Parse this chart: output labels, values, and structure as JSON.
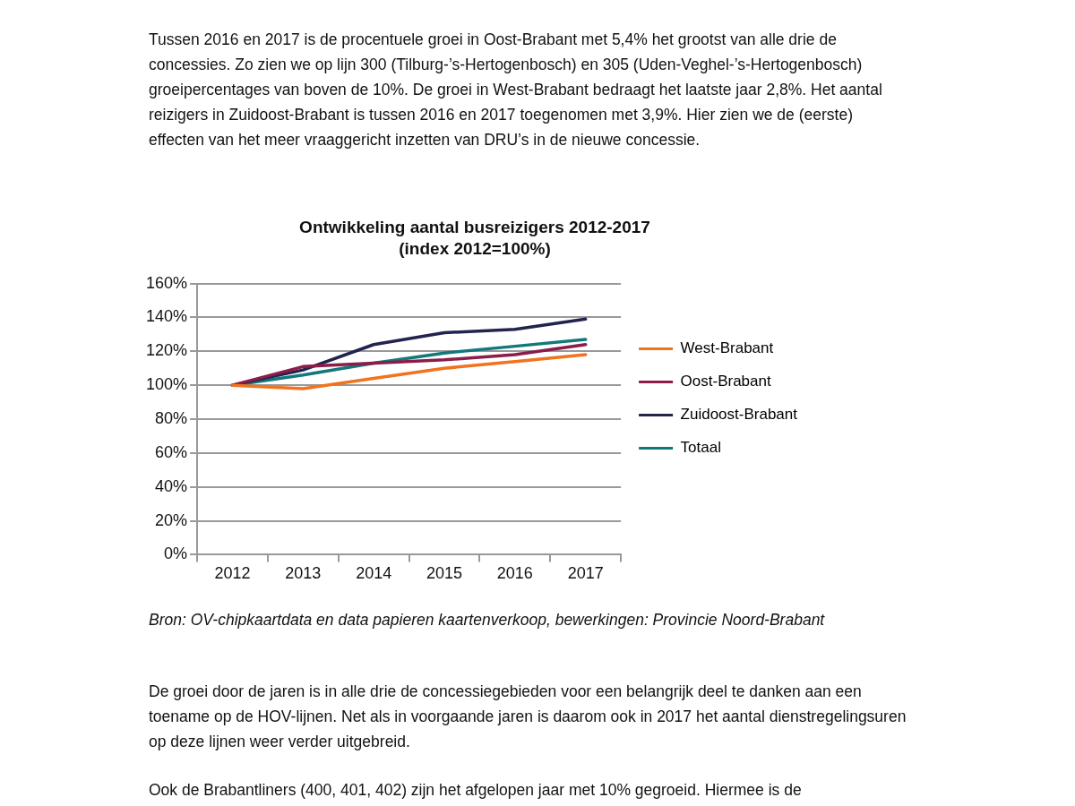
{
  "chart_data": {
    "type": "line",
    "title": "Ontwikkeling aantal busreizigers 2012-2017",
    "subtitle": "(index 2012=100%)",
    "categories": [
      "2012",
      "2013",
      "2014",
      "2015",
      "2016",
      "2017"
    ],
    "series": [
      {
        "name": "West-Brabant",
        "color": "#f0731e",
        "values": [
          100,
          98,
          104,
          110,
          114,
          118
        ]
      },
      {
        "name": "Oost-Brabant",
        "color": "#8c1c48",
        "values": [
          100,
          111,
          113,
          115,
          118,
          124
        ]
      },
      {
        "name": "Zuidoost-Brabant",
        "color": "#232350",
        "values": [
          100,
          109,
          124,
          131,
          133,
          139
        ]
      },
      {
        "name": "Totaal",
        "color": "#13787a",
        "values": [
          100,
          106,
          113,
          119,
          123,
          127
        ]
      }
    ],
    "ylim": [
      0,
      160
    ],
    "yticks": [
      {
        "value": 0,
        "label": "0%"
      },
      {
        "value": 20,
        "label": "20%"
      },
      {
        "value": 40,
        "label": "40%"
      },
      {
        "value": 60,
        "label": "60%"
      },
      {
        "value": 80,
        "label": "80%"
      },
      {
        "value": 100,
        "label": "100%"
      },
      {
        "value": 120,
        "label": "120%"
      },
      {
        "value": 140,
        "label": "140%"
      },
      {
        "value": 160,
        "label": "160%"
      }
    ],
    "grid": "y",
    "legend": "right",
    "marker": "none",
    "line_style": "solid",
    "annotations": [
      "Tussen 2016 en 2017 is de procentuele groei in Oost-Brabant met 5,4% het grootst van alle drie de concessies. Zo zien we op lijn 300 (Tilburg-’s-Hertogenbosch) en 305 (Uden-Veghel-’s-Hertogenbosch) groeipercentages van boven de 10%. De groei in West-Brabant bedraagt het laatste jaar 2,8%. Het aantal reizigers in Zuidoost-Brabant is tussen 2016 en 2017 toegenomen met 3,9%. Hier zien we de (eerste) effecten van het meer vraaggericht inzetten van DRU’s in de nieuwe concessie.",
      "Bron: OV-chipkaartdata en data papieren kaartenverkoop, bewerkingen: Provincie Noord-Brabant",
      "De groei door de jaren is in alle drie de concessiegebieden voor een belangrijk deel te danken aan een toename op de HOV-lijnen. Net als in voorgaande jaren is daarom ook in 2017 het aantal dienstregelingsuren op deze lijnen weer verder uitgebreid.",
      "Ook de Brabantliners (400, 401, 402) zijn het afgelopen jaar met 10% gegroeid. Hiermee is de"
    ]
  }
}
